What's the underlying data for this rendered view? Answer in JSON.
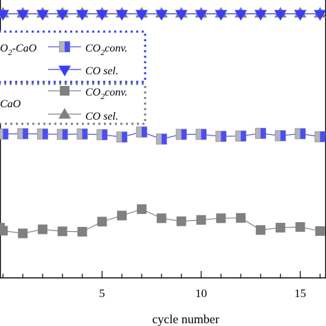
{
  "chart_data": {
    "type": "line",
    "xlabel": "cycle number",
    "ylabel": "",
    "title": "",
    "xlim": [
      -0.15,
      16.3
    ],
    "ylim": [
      0,
      100
    ],
    "x_ticks": [
      5,
      10,
      15
    ],
    "x": [
      -0.15,
      0,
      1,
      2,
      3,
      4,
      5,
      6,
      7,
      8,
      9,
      10,
      11,
      12,
      13,
      14,
      15,
      16
    ],
    "series": [
      {
        "group": "blue",
        "label": "CO₂ conv.",
        "marker": "half-square",
        "color": "#4b4ef0",
        "values": [
          null,
          63.3,
          63.4,
          63.3,
          63.2,
          63.3,
          63.1,
          62.4,
          63.9,
          61.8,
          63.2,
          63.2,
          62.6,
          62.7,
          63.5,
          62.8,
          63.4,
          62.5
        ]
      },
      {
        "group": "blue",
        "label": "CO sel.",
        "marker": "triangle-down",
        "color": "#3a3ef2",
        "values": [
          null,
          99.0,
          99.0,
          99.0,
          99.0,
          99.0,
          99.0,
          99.0,
          99.0,
          99.0,
          99.0,
          99.0,
          99.0,
          99.0,
          99.0,
          99.0,
          99.0,
          99.0
        ]
      },
      {
        "group": "gray",
        "label": "CO₂ conv.",
        "marker": "square",
        "color": "#808080",
        "values": [
          35.5,
          34.6,
          33.8,
          35.0,
          34.4,
          34.3,
          37.3,
          39.1,
          41.0,
          38.3,
          37.4,
          37.8,
          38.3,
          38.4,
          34.8,
          35.5,
          35.7,
          34.5
        ]
      },
      {
        "group": "gray",
        "label": "CO sel.",
        "marker": "triangle-up",
        "color": "#808080",
        "values": [
          null,
          99.0,
          99.0,
          99.0,
          99.0,
          99.0,
          99.0,
          99.0,
          99.0,
          99.0,
          99.0,
          99.0,
          99.0,
          99.0,
          99.0,
          99.0,
          99.0,
          99.0
        ]
      }
    ],
    "legend": {
      "placement": "top-left",
      "groups": [
        {
          "name": "blue",
          "title_pre": "O",
          "title_sub": "2",
          "title_post": "-CaO",
          "border_color": "#3a3ef2",
          "entries": [
            "CO₂conv.",
            "CO sel."
          ]
        },
        {
          "name": "gray",
          "title_pre": "CaO",
          "title_sub": "",
          "title_post": "",
          "border_color": "#808080",
          "entries": [
            "CO₂conv.",
            "CO sel."
          ]
        }
      ]
    }
  }
}
